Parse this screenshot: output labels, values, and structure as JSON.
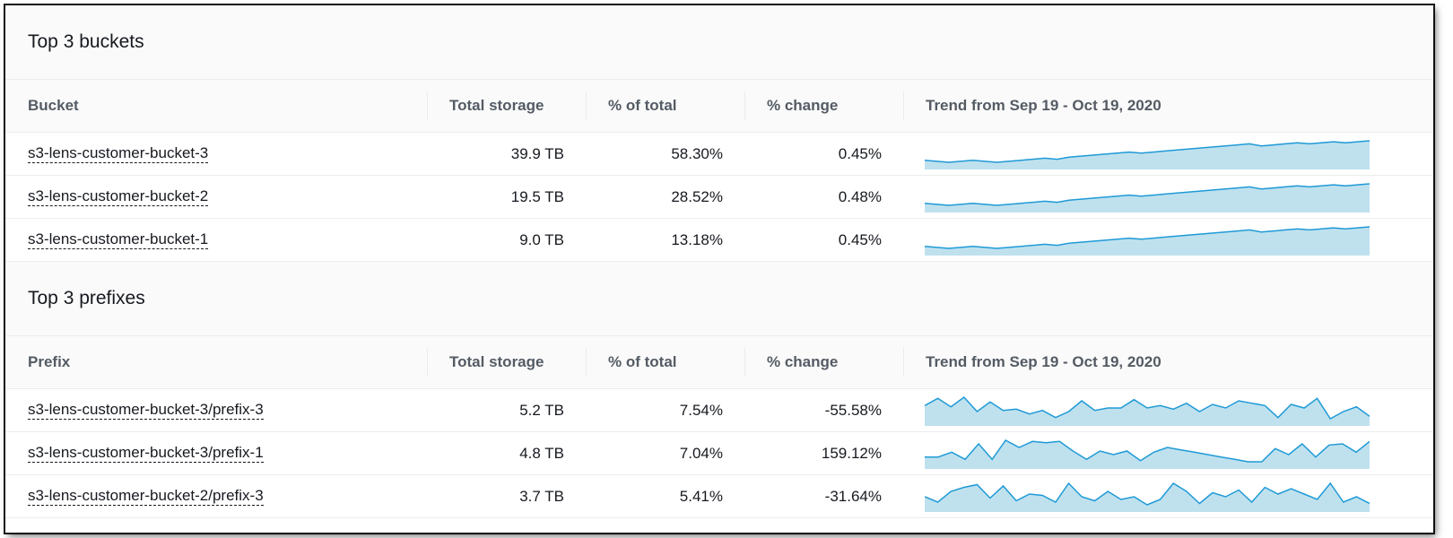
{
  "sections": [
    {
      "title": "Top 3 buckets",
      "columns": [
        "Bucket",
        "Total storage",
        "% of total",
        "% change",
        "Trend from Sep 19 - Oct 19, 2020"
      ],
      "rows": [
        {
          "name": "s3-lens-customer-bucket-3",
          "storage": "39.9 TB",
          "pct": "58.30%",
          "change": "0.45%",
          "trend": [
            3,
            2,
            1,
            2,
            3,
            2,
            1,
            2,
            3,
            4,
            5,
            4,
            6,
            7,
            8,
            9,
            10,
            11,
            10,
            11,
            12,
            13,
            14,
            15,
            16,
            17,
            18,
            19,
            17,
            18,
            19,
            20,
            19,
            20,
            21,
            20,
            21,
            22
          ]
        },
        {
          "name": "s3-lens-customer-bucket-2",
          "storage": "19.5 TB",
          "pct": "28.52%",
          "change": "0.48%",
          "trend": [
            3,
            2,
            1,
            2,
            3,
            2,
            1,
            2,
            3,
            4,
            5,
            4,
            6,
            7,
            8,
            9,
            10,
            11,
            10,
            11,
            12,
            13,
            14,
            15,
            16,
            17,
            18,
            19,
            17,
            18,
            19,
            20,
            19,
            20,
            21,
            20,
            21,
            22
          ]
        },
        {
          "name": "s3-lens-customer-bucket-1",
          "storage": "9.0 TB",
          "pct": "13.18%",
          "change": "0.45%",
          "trend": [
            3,
            2,
            1,
            2,
            3,
            2,
            1,
            2,
            3,
            4,
            5,
            4,
            6,
            7,
            8,
            9,
            10,
            11,
            10,
            11,
            12,
            13,
            14,
            15,
            16,
            17,
            18,
            19,
            17,
            18,
            19,
            20,
            19,
            20,
            21,
            20,
            21,
            22
          ]
        }
      ]
    },
    {
      "title": "Top 3 prefixes",
      "columns": [
        "Prefix",
        "Total storage",
        "% of total",
        "% change",
        "Trend from Sep 19 - Oct 19, 2020"
      ],
      "rows": [
        {
          "name": "s3-lens-customer-bucket-3/prefix-3",
          "storage": "5.2 TB",
          "pct": "7.54%",
          "change": "-55.58%",
          "trend": [
            14,
            20,
            13,
            21,
            9,
            17,
            10,
            11,
            7,
            10,
            4,
            9,
            18,
            10,
            12,
            12,
            19,
            12,
            14,
            11,
            16,
            9,
            15,
            12,
            18,
            16,
            14,
            4,
            15,
            12,
            20,
            3,
            9,
            13,
            5
          ]
        },
        {
          "name": "s3-lens-customer-bucket-3/prefix-1",
          "storage": "4.8 TB",
          "pct": "7.04%",
          "change": "159.12%",
          "trend": [
            6,
            6,
            10,
            4,
            17,
            4,
            20,
            14,
            19,
            18,
            19,
            11,
            4,
            11,
            8,
            11,
            3,
            10,
            14,
            12,
            10,
            8,
            6,
            4,
            2,
            2,
            13,
            8,
            17,
            6,
            16,
            17,
            10,
            19
          ]
        },
        {
          "name": "s3-lens-customer-bucket-2/prefix-3",
          "storage": "3.7 TB",
          "pct": "5.41%",
          "change": "-31.64%",
          "trend": [
            10,
            6,
            14,
            17,
            19,
            9,
            18,
            7,
            12,
            11,
            6,
            20,
            10,
            7,
            14,
            8,
            10,
            4,
            8,
            20,
            14,
            5,
            13,
            10,
            15,
            6,
            17,
            12,
            16,
            12,
            8,
            20,
            6,
            10,
            5
          ]
        }
      ]
    }
  ],
  "colors": {
    "sparkline_stroke": "#1f9ad6",
    "sparkline_fill": "#bfe1ee"
  }
}
